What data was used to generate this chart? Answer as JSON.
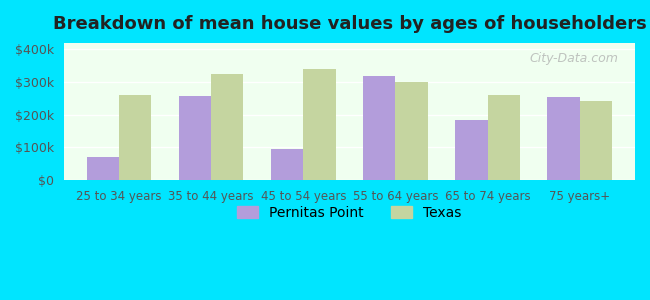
{
  "title": "Breakdown of mean house values by ages of householders",
  "categories": [
    "25 to 34 years",
    "35 to 44 years",
    "45 to 54 years",
    "55 to 64 years",
    "65 to 74 years",
    "75 years+"
  ],
  "pernitas_point": [
    70000,
    258000,
    95000,
    320000,
    185000,
    255000
  ],
  "texas": [
    260000,
    325000,
    340000,
    300000,
    260000,
    243000
  ],
  "pernitas_color": "#b39ddb",
  "texas_color": "#c5d5a0",
  "background_color": "#00e5ff",
  "plot_bg_start": "#f0fff0",
  "plot_bg_end": "#ffffff",
  "ylabel_ticks": [
    "$0",
    "$100k",
    "$200k",
    "$300k",
    "$400k"
  ],
  "ytick_vals": [
    0,
    100000,
    200000,
    300000,
    400000
  ],
  "ylim": [
    0,
    420000
  ],
  "legend_pernitas": "Pernitas Point",
  "legend_texas": "Texas",
  "watermark": "City-Data.com"
}
